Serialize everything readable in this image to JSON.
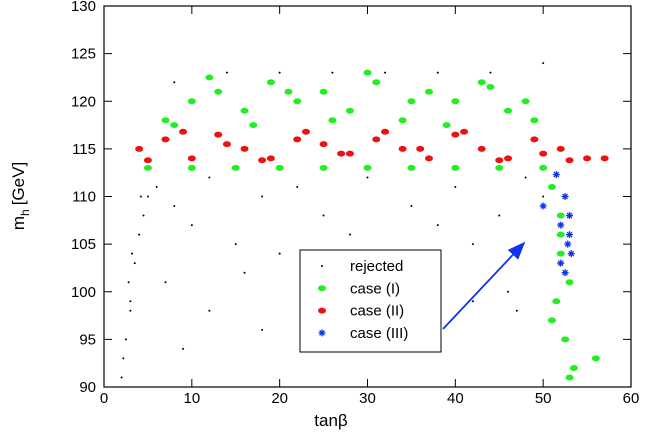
{
  "chart_data": {
    "type": "scatter",
    "x_label": "tanβ",
    "y_label": {
      "symbol": "m",
      "subscript": "h",
      "unit": "[GeV]"
    },
    "xlim": [
      0,
      60
    ],
    "xticks": [
      0,
      10,
      20,
      30,
      40,
      50,
      60
    ],
    "ylim": [
      90,
      130
    ],
    "yticks": [
      90,
      95,
      100,
      105,
      110,
      115,
      120,
      125,
      130
    ],
    "legend": "lower-center",
    "series": [
      {
        "name": "rejected",
        "color": "#000000",
        "marker": "dot",
        "x": [
          2,
          2.5,
          3,
          3.5,
          4,
          4.5,
          5,
          3,
          2.2,
          2.8,
          6,
          8,
          10,
          12,
          15,
          18,
          20,
          22,
          25,
          28,
          30,
          33,
          35,
          38,
          40,
          42,
          45,
          48,
          50,
          8,
          14,
          20,
          26,
          32,
          38,
          44,
          50,
          12,
          24,
          36,
          46,
          7,
          18,
          30,
          42,
          9,
          16,
          27,
          35,
          47,
          55,
          3.2,
          4.2
        ],
        "values": [
          91,
          95,
          99,
          103,
          106,
          108,
          110,
          98,
          93,
          101,
          111,
          109,
          107,
          112,
          105,
          110,
          104,
          111,
          108,
          106,
          112,
          103,
          109,
          107,
          111,
          105,
          108,
          112,
          110,
          122,
          123,
          123,
          123,
          123,
          123,
          123,
          124,
          98,
          99,
          97,
          100,
          101,
          96,
          95,
          99,
          94,
          102,
          100,
          103,
          98,
          114,
          104,
          110
        ]
      },
      {
        "name": "case (I)",
        "color": "#22ee22",
        "marker": "ellipse",
        "x": [
          7,
          10,
          13,
          16,
          19,
          22,
          25,
          28,
          31,
          34,
          37,
          40,
          43,
          46,
          49,
          8,
          12,
          17,
          21,
          26,
          30,
          35,
          39,
          44,
          48,
          5,
          10,
          15,
          20,
          25,
          30,
          35,
          40,
          45,
          50,
          51,
          52,
          53,
          51.5,
          52.5,
          53.5,
          51,
          52,
          53,
          52,
          56
        ],
        "values": [
          118,
          120,
          121,
          119,
          122,
          120,
          121,
          119,
          122,
          118,
          121,
          120,
          122,
          119,
          118,
          117.5,
          122.5,
          117.5,
          121,
          118,
          123,
          120,
          117.5,
          121.5,
          120,
          113,
          113,
          113,
          113,
          113,
          113,
          113,
          113,
          113,
          113,
          111,
          108,
          101,
          99,
          95,
          92,
          97,
          104,
          91,
          106,
          93
        ]
      },
      {
        "name": "case (II)",
        "color": "#ee1111",
        "marker": "ellipse",
        "x": [
          4,
          7,
          10,
          13,
          16,
          19,
          22,
          25,
          28,
          31,
          34,
          37,
          40,
          43,
          46,
          49,
          52,
          55,
          5,
          9,
          14,
          18,
          23,
          27,
          32,
          36,
          41,
          45,
          50,
          53,
          57
        ],
        "values": [
          115,
          116,
          114,
          116.5,
          115,
          114,
          116,
          115.5,
          114.5,
          116,
          115,
          114,
          116.5,
          115,
          114,
          116,
          115,
          114,
          113.8,
          116.8,
          115.5,
          113.8,
          116.8,
          114.5,
          116.8,
          115,
          116.8,
          113.8,
          114.5,
          113.8,
          114
        ]
      },
      {
        "name": "case (III)",
        "color": "#1133ee",
        "marker": "asterisk",
        "x": [
          51.5,
          52.5,
          53,
          52,
          52.8,
          50,
          53.2,
          52,
          52.5,
          53
        ],
        "values": [
          112.3,
          110,
          108,
          107,
          105,
          109,
          104,
          103,
          102,
          106
        ]
      }
    ]
  }
}
